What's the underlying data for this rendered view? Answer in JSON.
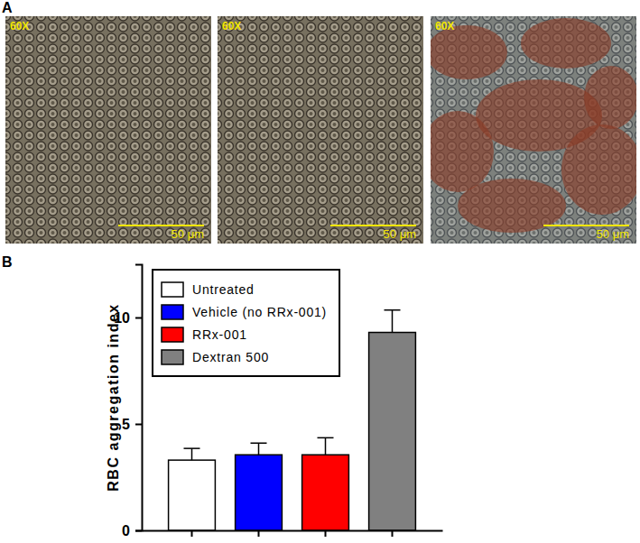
{
  "figure": {
    "panel_labels": [
      "A",
      "B"
    ],
    "images": [
      {
        "label": "60X",
        "scale_bar": "50 μm"
      },
      {
        "label": "60X",
        "scale_bar": "50 μm"
      },
      {
        "label": "60X",
        "scale_bar": "50 μm"
      }
    ]
  },
  "chart_data": {
    "type": "bar",
    "y_label": "RBC aggregation index",
    "categories": [
      null,
      null,
      null,
      null
    ],
    "series": [
      {
        "name": "Untreated",
        "color": "#ffffff",
        "values": [
          3.3,
          null,
          null,
          null
        ],
        "errors": [
          0.55,
          null,
          null,
          null
        ]
      },
      {
        "name": "Vehicle (no RRx-001)",
        "color": "#0000ff",
        "values": [
          null,
          3.55,
          null,
          null
        ],
        "errors": [
          null,
          0.55,
          null,
          null
        ]
      },
      {
        "name": "RRx-001",
        "color": "#ff0000",
        "values": [
          null,
          null,
          3.55,
          null
        ],
        "errors": [
          null,
          null,
          0.8,
          null
        ]
      },
      {
        "name": "Dextran 500",
        "color": "#808080",
        "values": [
          null,
          null,
          null,
          9.3
        ],
        "errors": [
          null,
          null,
          null,
          1.05
        ]
      }
    ],
    "ylim": [
      0,
      12.5
    ],
    "yticks": [
      0,
      5,
      10
    ],
    "legend": "upper left"
  }
}
